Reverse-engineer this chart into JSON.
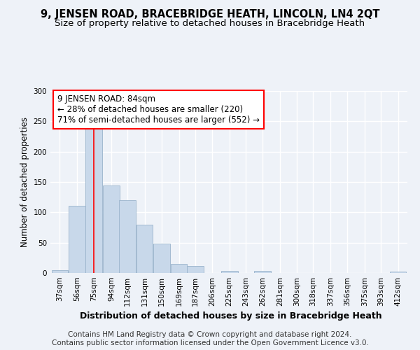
{
  "title1": "9, JENSEN ROAD, BRACEBRIDGE HEATH, LINCOLN, LN4 2QT",
  "title2": "Size of property relative to detached houses in Bracebridge Heath",
  "xlabel": "Distribution of detached houses by size in Bracebridge Heath",
  "ylabel": "Number of detached properties",
  "footer1": "Contains HM Land Registry data © Crown copyright and database right 2024.",
  "footer2": "Contains public sector information licensed under the Open Government Licence v3.0.",
  "annotation_line1": "9 JENSEN ROAD: 84sqm",
  "annotation_line2": "← 28% of detached houses are smaller (220)",
  "annotation_line3": "71% of semi-detached houses are larger (552) →",
  "bar_color": "#c8d8ea",
  "bar_edge_color": "#9ab4cc",
  "red_line_x": 84,
  "categories": [
    "37sqm",
    "56sqm",
    "75sqm",
    "94sqm",
    "112sqm",
    "131sqm",
    "150sqm",
    "169sqm",
    "187sqm",
    "206sqm",
    "225sqm",
    "243sqm",
    "262sqm",
    "281sqm",
    "300sqm",
    "318sqm",
    "337sqm",
    "356sqm",
    "375sqm",
    "393sqm",
    "412sqm"
  ],
  "bin_edges": [
    37,
    56,
    75,
    94,
    112,
    131,
    150,
    169,
    187,
    206,
    225,
    243,
    262,
    281,
    300,
    318,
    337,
    356,
    375,
    393,
    412
  ],
  "bin_width": 19,
  "values": [
    5,
    111,
    243,
    144,
    120,
    80,
    48,
    15,
    12,
    0,
    3,
    0,
    3,
    0,
    0,
    0,
    0,
    0,
    0,
    0,
    2
  ],
  "ylim": [
    0,
    300
  ],
  "yticks": [
    0,
    50,
    100,
    150,
    200,
    250,
    300
  ],
  "background_color": "#eef2f8",
  "grid_color": "#ffffff",
  "title1_fontsize": 10.5,
  "title2_fontsize": 9.5,
  "xlabel_fontsize": 9,
  "ylabel_fontsize": 8.5,
  "tick_fontsize": 7.5,
  "annotation_fontsize": 8.5,
  "footer_fontsize": 7.5
}
